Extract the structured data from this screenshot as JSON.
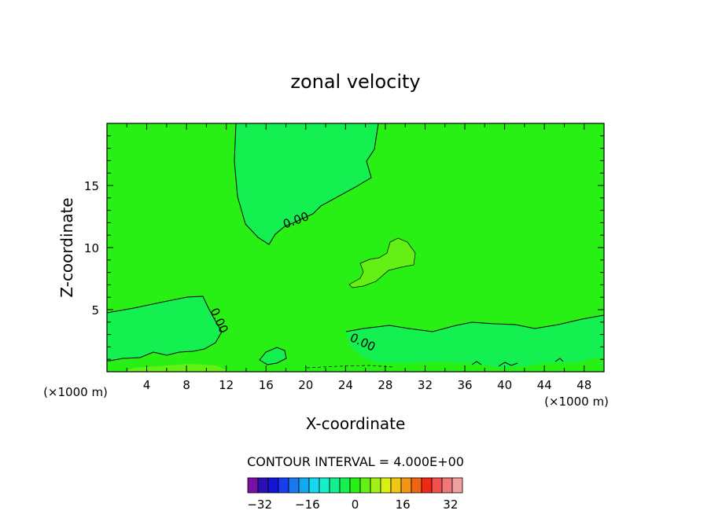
{
  "chart_data": {
    "type": "heatmap",
    "title": "zonal velocity",
    "xlabel": "X-coordinate",
    "ylabel": "Z-coordinate",
    "x_unit_left": "(×1000 m)",
    "x_unit_right": "(×1000 m)",
    "xlim": [
      0,
      50
    ],
    "ylim": [
      0,
      20
    ],
    "x_ticks": [
      "4",
      "8",
      "12",
      "16",
      "20",
      "24",
      "28",
      "32",
      "36",
      "40",
      "44",
      "48"
    ],
    "y_ticks": [
      "5",
      "10",
      "15"
    ],
    "contour_labels": [
      "0.00",
      "0.00",
      "0.00"
    ],
    "contour_interval_text": "CONTOUR INTERVAL = 4.000E+00",
    "colorbar": {
      "tick_labels": [
        "−32",
        "−16",
        "0",
        "16",
        "32"
      ],
      "tick_values": [
        -32,
        -16,
        0,
        16,
        32
      ],
      "range": [
        -36,
        36
      ],
      "colors": [
        "#7a0fa8",
        "#2a10b4",
        "#1414d8",
        "#1a3cf0",
        "#1a78f0",
        "#14a8f0",
        "#14d8f0",
        "#14f0c8",
        "#14f090",
        "#14f050",
        "#28f014",
        "#64f014",
        "#a0f014",
        "#d8f014",
        "#f0c814",
        "#f09614",
        "#f06414",
        "#f02814",
        "#f05050",
        "#f07878",
        "#f0a0a0"
      ]
    },
    "field": {
      "background_value": 2,
      "background_color": "#28f014",
      "regions": [
        {
          "name": "upper-negative",
          "value": -2,
          "color": "#14f050"
        },
        {
          "name": "lower-left-negative",
          "value": -2,
          "color": "#14f050"
        },
        {
          "name": "lower-right-negative",
          "value": -2,
          "color": "#14f050"
        },
        {
          "name": "small-negative-blob",
          "value": -2,
          "color": "#14f050"
        },
        {
          "name": "mid-positive-blob",
          "value": 6,
          "color": "#64f014"
        },
        {
          "name": "bottom-strip",
          "value": 6,
          "color": "#64f014"
        }
      ]
    }
  }
}
